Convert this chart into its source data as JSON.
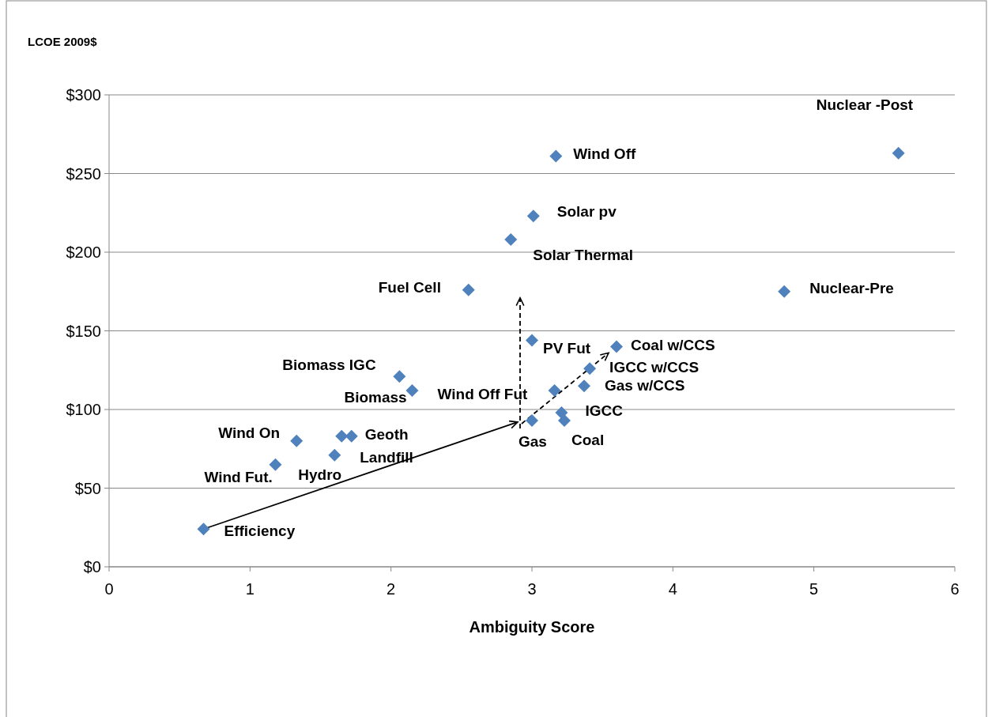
{
  "chart_data": {
    "type": "scatter",
    "ylabel": "LCOE 2009$",
    "xlabel": "Ambiguity Score",
    "xlim": [
      0,
      6
    ],
    "xticks": [
      0,
      1,
      2,
      3,
      4,
      5,
      6
    ],
    "ylim": [
      0,
      300
    ],
    "yticks": [
      {
        "value": 0,
        "label": "$0"
      },
      {
        "value": 50,
        "label": "$50"
      },
      {
        "value": 100,
        "label": "$100"
      },
      {
        "value": 150,
        "label": "$150"
      },
      {
        "value": 200,
        "label": "$200"
      },
      {
        "value": 250,
        "label": "$250"
      },
      {
        "value": 300,
        "label": "$300"
      }
    ],
    "grid": "y",
    "marker": "diamond",
    "series": [
      {
        "color": "#4f81bd",
        "x": [
          0.67,
          1.18,
          1.33,
          1.6,
          1.65,
          1.72,
          2.06,
          2.15,
          2.55,
          2.85,
          3.01,
          3.17,
          3.0,
          3.16,
          3.0,
          3.21,
          3.23,
          3.37,
          3.41,
          3.6,
          4.79,
          5.6
        ],
        "values": [
          24,
          65,
          80,
          71,
          83,
          83,
          121,
          112,
          176,
          208,
          223,
          261,
          144,
          112,
          93,
          98,
          93,
          115,
          126,
          140,
          175,
          263
        ]
      }
    ],
    "annotations": [
      {
        "text": "Efficiency",
        "x": 0.67,
        "y": 24
      },
      {
        "text": "Wind Fut.",
        "x": 1.18,
        "y": 65
      },
      {
        "text": "Wind On",
        "x": 1.33,
        "y": 80
      },
      {
        "text": "Hydro",
        "x": 1.6,
        "y": 71
      },
      {
        "text": "Landfill",
        "x": 1.65,
        "y": 83
      },
      {
        "text": "Geoth",
        "x": 1.72,
        "y": 83
      },
      {
        "text": "Biomass IGC",
        "x": 2.06,
        "y": 121
      },
      {
        "text": "Biomass",
        "x": 2.15,
        "y": 112
      },
      {
        "text": "Fuel Cell",
        "x": 2.55,
        "y": 176
      },
      {
        "text": "Solar Thermal",
        "x": 2.85,
        "y": 208
      },
      {
        "text": "Solar pv",
        "x": 3.01,
        "y": 223
      },
      {
        "text": "Wind Off",
        "x": 3.17,
        "y": 261
      },
      {
        "text": "PV Fut",
        "x": 3.0,
        "y": 144
      },
      {
        "text": "Wind Off Fut",
        "x": 3.16,
        "y": 112
      },
      {
        "text": "Gas",
        "x": 3.0,
        "y": 93
      },
      {
        "text": "IGCC",
        "x": 3.21,
        "y": 98
      },
      {
        "text": "Coal",
        "x": 3.23,
        "y": 93
      },
      {
        "text": "Gas w/CCS",
        "x": 3.37,
        "y": 115
      },
      {
        "text": "IGCC w/CCS",
        "x": 3.41,
        "y": 126
      },
      {
        "text": "Coal w/CCS",
        "x": 3.6,
        "y": 140
      },
      {
        "text": "Nuclear-Pre",
        "x": 4.79,
        "y": 175
      },
      {
        "text": "Nuclear -Post",
        "x": 5.6,
        "y": 263
      }
    ]
  }
}
